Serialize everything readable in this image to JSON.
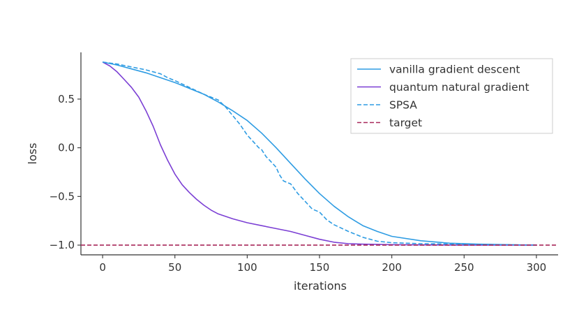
{
  "chart_data": {
    "type": "line",
    "title": "",
    "xlabel": "iterations",
    "ylabel": "loss",
    "xlim": [
      -15,
      315
    ],
    "ylim": [
      -1.1,
      0.98
    ],
    "xticks": [
      0,
      50,
      100,
      150,
      200,
      250,
      300
    ],
    "yticks": [
      0.5,
      0.0,
      -0.5,
      -1.0
    ],
    "ytick_labels": [
      "0.5",
      "0.0",
      "−0.5",
      "−1.0"
    ],
    "grid": false,
    "legend_position": "top-right",
    "series": [
      {
        "name": "vanilla gradient descent",
        "color": "#2e9ce3",
        "dash": "solid",
        "x": [
          0,
          10,
          20,
          30,
          40,
          50,
          60,
          70,
          80,
          90,
          100,
          110,
          120,
          130,
          140,
          150,
          160,
          170,
          180,
          190,
          200,
          220,
          240,
          260,
          280,
          300
        ],
        "y": [
          0.88,
          0.85,
          0.81,
          0.77,
          0.72,
          0.67,
          0.61,
          0.55,
          0.47,
          0.38,
          0.28,
          0.15,
          0.0,
          -0.16,
          -0.32,
          -0.47,
          -0.6,
          -0.71,
          -0.8,
          -0.86,
          -0.91,
          -0.955,
          -0.98,
          -0.99,
          -0.995,
          -1.0
        ]
      },
      {
        "name": "quantum natural gradient",
        "color": "#7b3fd4",
        "dash": "solid",
        "x": [
          0,
          5,
          10,
          15,
          20,
          25,
          30,
          35,
          40,
          45,
          50,
          55,
          60,
          65,
          70,
          75,
          80,
          90,
          100,
          110,
          120,
          130,
          140,
          150,
          160,
          170,
          180,
          200,
          250,
          300
        ],
        "y": [
          0.88,
          0.84,
          0.78,
          0.7,
          0.62,
          0.52,
          0.38,
          0.22,
          0.03,
          -0.13,
          -0.27,
          -0.38,
          -0.46,
          -0.53,
          -0.59,
          -0.64,
          -0.68,
          -0.73,
          -0.77,
          -0.8,
          -0.83,
          -0.86,
          -0.9,
          -0.94,
          -0.97,
          -0.985,
          -0.99,
          -0.995,
          -1.0,
          -1.0
        ]
      },
      {
        "name": "SPSA",
        "color": "#2e9ce3",
        "dash": "dashed",
        "x": [
          0,
          10,
          20,
          30,
          40,
          45,
          50,
          60,
          70,
          80,
          85,
          90,
          95,
          100,
          105,
          108,
          110,
          113,
          115,
          120,
          122,
          125,
          128,
          130,
          135,
          140,
          145,
          150,
          155,
          160,
          170,
          180,
          190,
          200,
          220,
          250,
          300
        ],
        "y": [
          0.88,
          0.86,
          0.83,
          0.8,
          0.76,
          0.72,
          0.69,
          0.62,
          0.55,
          0.49,
          0.42,
          0.33,
          0.24,
          0.13,
          0.05,
          0.0,
          -0.02,
          -0.09,
          -0.12,
          -0.2,
          -0.27,
          -0.34,
          -0.36,
          -0.37,
          -0.47,
          -0.55,
          -0.63,
          -0.66,
          -0.74,
          -0.79,
          -0.86,
          -0.92,
          -0.96,
          -0.975,
          -0.985,
          -0.99,
          -1.0
        ]
      },
      {
        "name": "target",
        "color": "#a8285a",
        "dash": "dashed",
        "x": [
          -15,
          315
        ],
        "y": [
          -1.0,
          -1.0
        ]
      }
    ]
  }
}
